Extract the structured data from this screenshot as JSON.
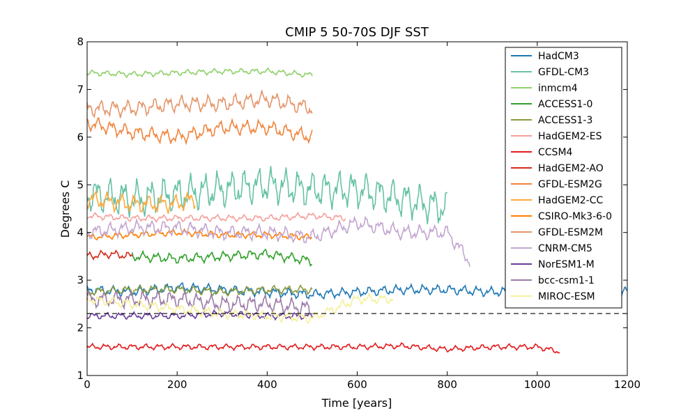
{
  "chart_data": {
    "type": "line",
    "title": "CMIP 5 50-70S DJF SST",
    "xlabel": "Time [years]",
    "ylabel": "Degrees C",
    "xlim": [
      0,
      1200
    ],
    "ylim": [
      1,
      8
    ],
    "xticks": [
      "0",
      "200",
      "400",
      "600",
      "800",
      "1000",
      "1200"
    ],
    "yticks": [
      "1",
      "2",
      "3",
      "4",
      "5",
      "6",
      "7",
      "8"
    ],
    "grid": false,
    "legend_position": "top-right",
    "reference_line": {
      "y": 2.3,
      "style": "dashed",
      "color": "#000000"
    },
    "series": [
      {
        "name": "HadCM3",
        "color": "#1f78b4",
        "x": [
          0,
          100,
          200,
          300,
          400,
          500,
          600,
          700,
          800,
          900,
          1000,
          1100,
          1200
        ],
        "y": [
          2.8,
          2.75,
          2.85,
          2.8,
          2.75,
          2.7,
          2.75,
          2.8,
          2.8,
          2.75,
          2.8,
          2.8,
          2.75
        ],
        "seed": 1,
        "amp": 0.12
      },
      {
        "name": "GFDL-CM3",
        "color": "#66c2a5",
        "x": [
          0,
          100,
          200,
          300,
          400,
          500,
          600,
          700,
          800
        ],
        "y": [
          4.8,
          4.7,
          4.8,
          4.9,
          5.0,
          4.9,
          4.9,
          4.7,
          4.5
        ],
        "seed": 2,
        "amp": 0.45
      },
      {
        "name": "inmcm4",
        "color": "#8fd16b",
        "x": [
          0,
          100,
          200,
          300,
          400,
          500
        ],
        "y": [
          7.35,
          7.32,
          7.35,
          7.38,
          7.38,
          7.3
        ],
        "seed": 3,
        "amp": 0.07
      },
      {
        "name": "ACCESS1-0",
        "color": "#33a02c",
        "x": [
          100,
          200,
          300,
          400,
          500
        ],
        "y": [
          3.5,
          3.45,
          3.5,
          3.55,
          3.4
        ],
        "seed": 4,
        "amp": 0.12
      },
      {
        "name": "ACCESS1-3",
        "color": "#8a9a3b",
        "x": [
          0,
          100,
          200,
          300,
          400,
          500
        ],
        "y": [
          2.75,
          2.8,
          2.8,
          2.75,
          2.8,
          2.8
        ],
        "seed": 5,
        "amp": 0.1
      },
      {
        "name": "HadGEM2-ES",
        "color": "#f4a09c",
        "x": [
          0,
          100,
          200,
          300,
          400,
          500,
          575
        ],
        "y": [
          4.35,
          4.3,
          4.3,
          4.3,
          4.3,
          4.35,
          4.3
        ],
        "seed": 6,
        "amp": 0.08
      },
      {
        "name": "CCSM4",
        "color": "#e31a1c",
        "x": [
          0,
          100,
          200,
          300,
          400,
          500,
          600,
          700,
          800,
          900,
          1000,
          1050
        ],
        "y": [
          1.6,
          1.6,
          1.6,
          1.6,
          1.6,
          1.6,
          1.6,
          1.62,
          1.55,
          1.6,
          1.6,
          1.5
        ],
        "seed": 7,
        "amp": 0.07
      },
      {
        "name": "HadGEM2-AO",
        "color": "#d42a1c",
        "x": [
          0,
          50,
          100
        ],
        "y": [
          3.5,
          3.55,
          3.5
        ],
        "seed": 8,
        "amp": 0.1
      },
      {
        "name": "GFDL-ESM2G",
        "color": "#f0843c",
        "x": [
          0,
          100,
          200,
          300,
          400,
          500
        ],
        "y": [
          6.3,
          6.1,
          6.0,
          6.2,
          6.2,
          6.0
        ],
        "seed": 9,
        "amp": 0.18
      },
      {
        "name": "HadGEM2-CC",
        "color": "#ffa83c",
        "x": [
          0,
          100,
          200,
          240
        ],
        "y": [
          4.7,
          4.6,
          4.6,
          4.7
        ],
        "seed": 10,
        "amp": 0.22
      },
      {
        "name": "CSIRO-Mk3-6-0",
        "color": "#ff7f00",
        "x": [
          0,
          100,
          200,
          300,
          400,
          500
        ],
        "y": [
          3.9,
          3.95,
          4.0,
          3.95,
          3.95,
          3.9
        ],
        "seed": 11,
        "amp": 0.08
      },
      {
        "name": "GFDL-ESM2M",
        "color": "#e3956a",
        "x": [
          0,
          100,
          200,
          300,
          400,
          500
        ],
        "y": [
          6.6,
          6.6,
          6.7,
          6.7,
          6.8,
          6.6
        ],
        "seed": 12,
        "amp": 0.2
      },
      {
        "name": "CNRM-CM5",
        "color": "#c2a5cf",
        "x": [
          0,
          100,
          200,
          300,
          400,
          500,
          600,
          700,
          800,
          850
        ],
        "y": [
          4.0,
          4.1,
          4.1,
          4.0,
          4.0,
          3.9,
          4.2,
          4.0,
          4.0,
          3.4
        ],
        "seed": 13,
        "amp": 0.18
      },
      {
        "name": "NorESM1-M",
        "color": "#6a3d9a",
        "x": [
          0,
          100,
          200,
          300,
          400,
          500
        ],
        "y": [
          2.25,
          2.25,
          2.25,
          2.3,
          2.25,
          2.25
        ],
        "seed": 14,
        "amp": 0.08
      },
      {
        "name": "bcc-csm1-1",
        "color": "#9b7aa8",
        "x": [
          0,
          100,
          200,
          300,
          400,
          500
        ],
        "y": [
          2.6,
          2.6,
          2.6,
          2.5,
          2.5,
          2.4
        ],
        "seed": 15,
        "amp": 0.2
      },
      {
        "name": "MIROC-ESM",
        "color": "#f5f09a",
        "x": [
          0,
          100,
          200,
          300,
          400,
          500,
          600,
          680
        ],
        "y": [
          2.6,
          2.5,
          2.4,
          2.3,
          2.25,
          2.2,
          2.6,
          2.6
        ],
        "seed": 16,
        "amp": 0.12
      }
    ]
  }
}
